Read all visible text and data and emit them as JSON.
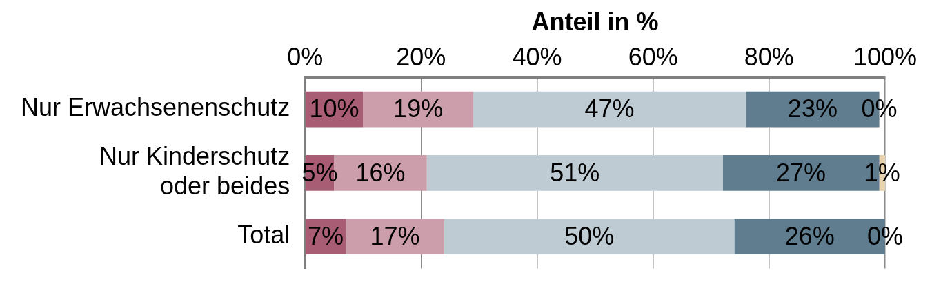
{
  "chart_data": {
    "type": "bar",
    "orientation": "horizontal",
    "stacked": true,
    "xlabel": "Anteil in %",
    "categories": [
      "Nur Erwachsenenschutz",
      "Nur Kinderschutz oder beides",
      "Total"
    ],
    "series": [
      {
        "color": "#a85d75",
        "values": [
          10,
          5,
          7
        ],
        "value_labels": [
          "10%",
          "5%",
          "7%"
        ]
      },
      {
        "color": "#cc9eab",
        "values": [
          19,
          16,
          17
        ],
        "value_labels": [
          "19%",
          "16%",
          "17%"
        ]
      },
      {
        "color": "#bfcbd3",
        "values": [
          47,
          51,
          50
        ],
        "value_labels": [
          "47%",
          "51%",
          "50%"
        ]
      },
      {
        "color": "#5f7d8f",
        "values": [
          23,
          27,
          26
        ],
        "value_labels": [
          "23%",
          "27%",
          "26%"
        ]
      },
      {
        "color": "#e8d3b0",
        "values": [
          0,
          1,
          0
        ],
        "value_labels": [
          "0%",
          "1%",
          "0%"
        ]
      }
    ],
    "xlim": [
      0,
      100
    ],
    "xticks": [
      {
        "value": 0,
        "label": "0%"
      },
      {
        "value": 20,
        "label": "20%"
      },
      {
        "value": 40,
        "label": "40%"
      },
      {
        "value": 60,
        "label": "60%"
      },
      {
        "value": 80,
        "label": "80%"
      },
      {
        "value": 100,
        "label": "100%"
      }
    ],
    "grid": "x",
    "legend": false
  }
}
